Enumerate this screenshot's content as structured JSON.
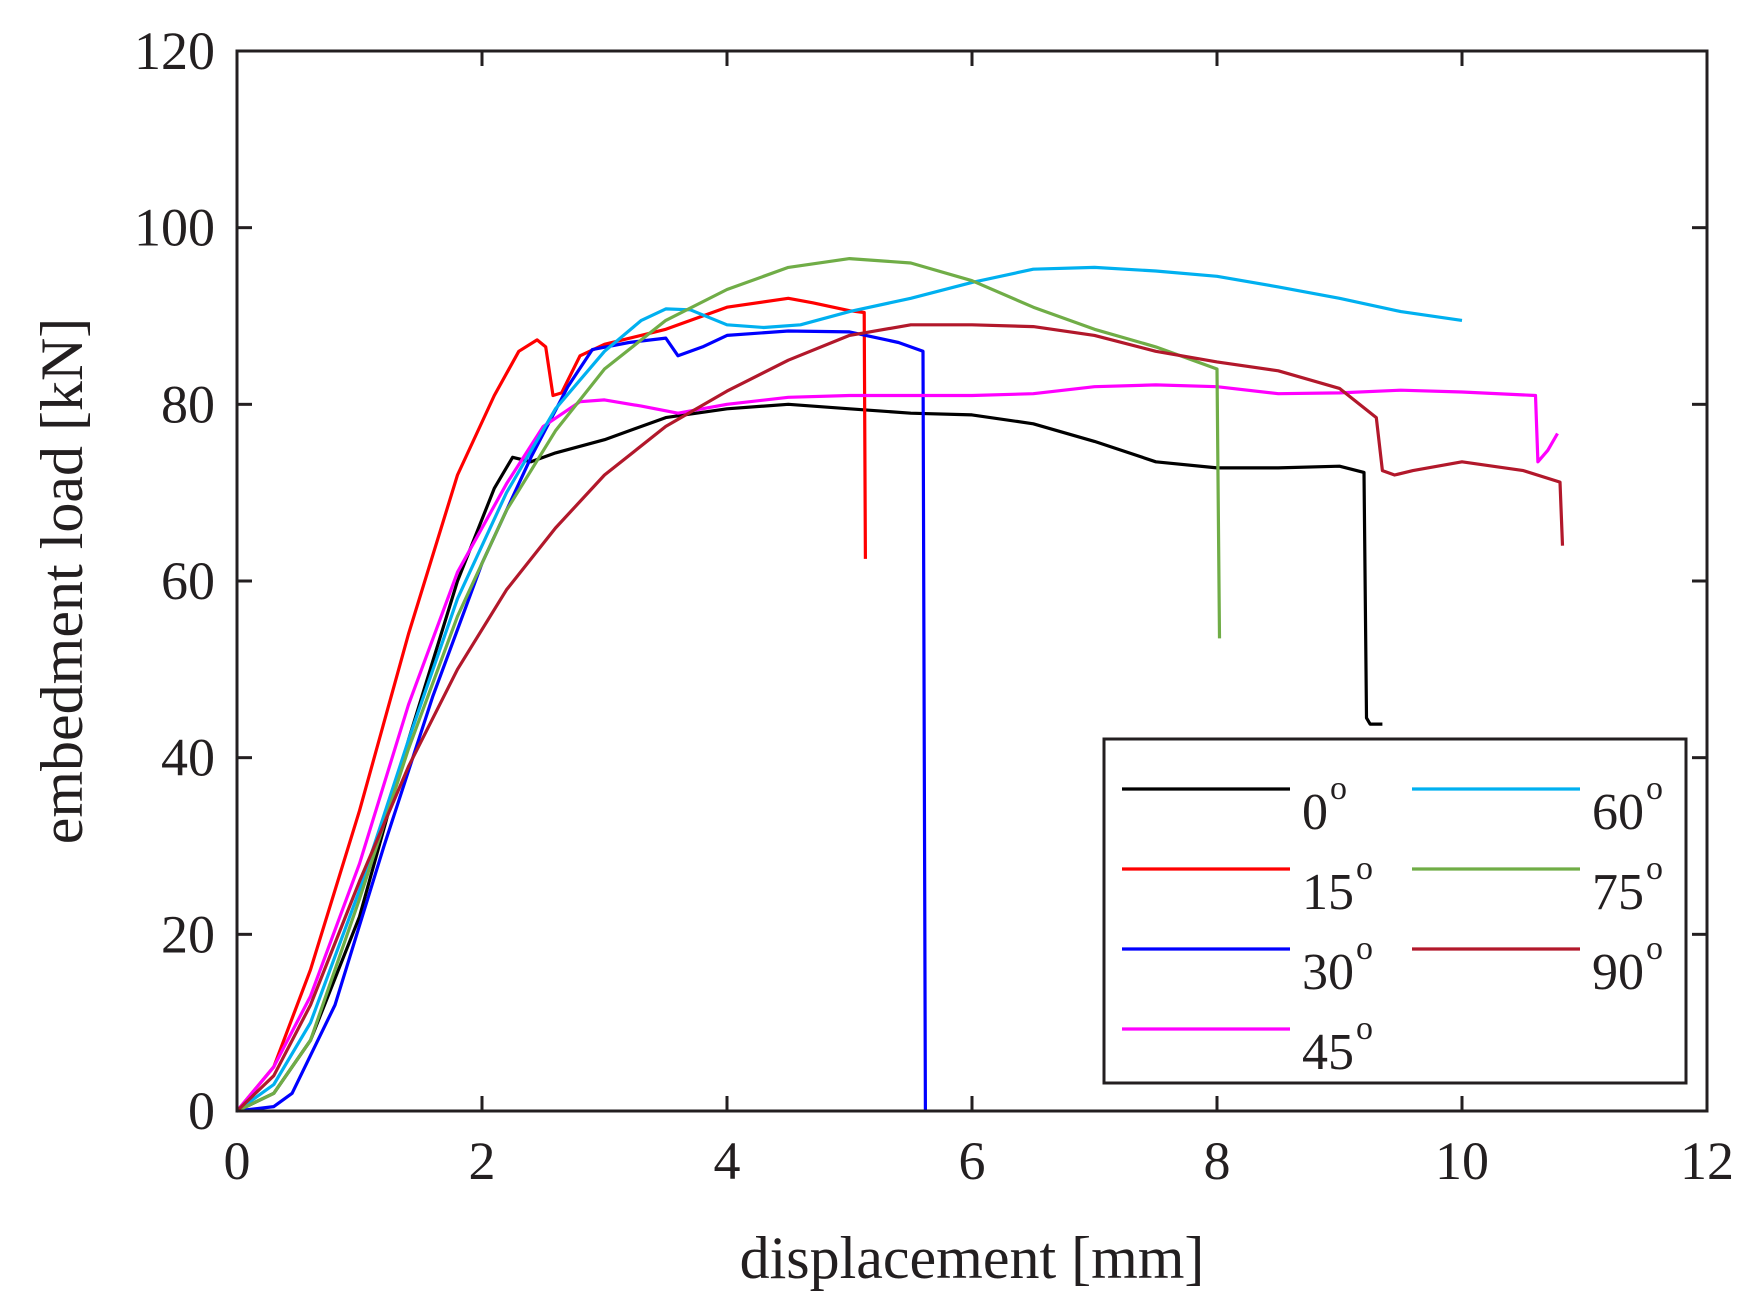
{
  "chart_data": {
    "type": "line",
    "title": "",
    "xlabel": "displacement [mm]",
    "ylabel": "embedment load [kN]",
    "xlim": [
      0,
      12
    ],
    "ylim": [
      0,
      120
    ],
    "xticks": [
      "0",
      "2",
      "4",
      "6",
      "8",
      "10",
      "12"
    ],
    "yticks": [
      "0",
      "20",
      "40",
      "60",
      "80",
      "100",
      "120"
    ],
    "legend_position": "bottom-right",
    "legend_columns": 2,
    "grid": false,
    "series": [
      {
        "name": "0",
        "unit_sup": "o",
        "color": "#000000",
        "points": [
          [
            0,
            0
          ],
          [
            0.3,
            2
          ],
          [
            0.6,
            8
          ],
          [
            1.0,
            22
          ],
          [
            1.4,
            42
          ],
          [
            1.8,
            60
          ],
          [
            2.1,
            70.5
          ],
          [
            2.25,
            74
          ],
          [
            2.4,
            73.5
          ],
          [
            2.6,
            74.5
          ],
          [
            3.0,
            76
          ],
          [
            3.5,
            78.5
          ],
          [
            4.0,
            79.5
          ],
          [
            4.5,
            80
          ],
          [
            5.0,
            79.5
          ],
          [
            5.5,
            79
          ],
          [
            6.0,
            78.8
          ],
          [
            6.5,
            77.8
          ],
          [
            7.0,
            75.8
          ],
          [
            7.5,
            73.5
          ],
          [
            8.0,
            72.8
          ],
          [
            8.5,
            72.8
          ],
          [
            9.0,
            73
          ],
          [
            9.2,
            72.3
          ],
          [
            9.22,
            44.5
          ],
          [
            9.25,
            43.8
          ],
          [
            9.35,
            43.8
          ]
        ]
      },
      {
        "name": "15",
        "unit_sup": "o",
        "color": "#ff0000",
        "points": [
          [
            0,
            0
          ],
          [
            0.3,
            5
          ],
          [
            0.6,
            16
          ],
          [
            1.0,
            34
          ],
          [
            1.4,
            54
          ],
          [
            1.8,
            72
          ],
          [
            2.1,
            81
          ],
          [
            2.3,
            86
          ],
          [
            2.45,
            87.3
          ],
          [
            2.52,
            86.5
          ],
          [
            2.58,
            81
          ],
          [
            2.65,
            81.3
          ],
          [
            2.8,
            85.5
          ],
          [
            3.0,
            86.8
          ],
          [
            3.5,
            88.5
          ],
          [
            4.0,
            91
          ],
          [
            4.5,
            92
          ],
          [
            4.7,
            91.5
          ],
          [
            5.0,
            90.6
          ],
          [
            5.12,
            90.4
          ],
          [
            5.13,
            62.5
          ]
        ]
      },
      {
        "name": "30",
        "unit_sup": "o",
        "color": "#0000ff",
        "points": [
          [
            0,
            0
          ],
          [
            0.3,
            0.5
          ],
          [
            0.45,
            2
          ],
          [
            0.8,
            12
          ],
          [
            1.2,
            30
          ],
          [
            1.6,
            47
          ],
          [
            2.0,
            62
          ],
          [
            2.4,
            74
          ],
          [
            2.7,
            82
          ],
          [
            2.9,
            86.2
          ],
          [
            3.2,
            87
          ],
          [
            3.5,
            87.5
          ],
          [
            3.6,
            85.5
          ],
          [
            3.8,
            86.5
          ],
          [
            4.0,
            87.8
          ],
          [
            4.5,
            88.3
          ],
          [
            5.0,
            88.2
          ],
          [
            5.4,
            87
          ],
          [
            5.6,
            86
          ],
          [
            5.62,
            0
          ]
        ]
      },
      {
        "name": "45",
        "unit_sup": "o",
        "color": "#ff00ff",
        "points": [
          [
            0,
            0
          ],
          [
            0.3,
            5
          ],
          [
            0.6,
            13
          ],
          [
            1.0,
            28
          ],
          [
            1.4,
            46
          ],
          [
            1.8,
            61
          ],
          [
            2.2,
            71
          ],
          [
            2.5,
            77.5
          ],
          [
            2.8,
            80.3
          ],
          [
            3.0,
            80.5
          ],
          [
            3.3,
            79.8
          ],
          [
            3.6,
            79
          ],
          [
            4.0,
            80
          ],
          [
            4.5,
            80.8
          ],
          [
            5.0,
            81
          ],
          [
            5.5,
            81
          ],
          [
            6.0,
            81
          ],
          [
            6.5,
            81.2
          ],
          [
            7.0,
            82
          ],
          [
            7.5,
            82.2
          ],
          [
            8.0,
            82
          ],
          [
            8.5,
            81.2
          ],
          [
            9.0,
            81.3
          ],
          [
            9.5,
            81.6
          ],
          [
            10.0,
            81.4
          ],
          [
            10.6,
            81
          ],
          [
            10.62,
            73.5
          ],
          [
            10.7,
            74.8
          ],
          [
            10.78,
            76.7
          ]
        ]
      },
      {
        "name": "60",
        "unit_sup": "o",
        "color": "#00b0f0",
        "points": [
          [
            0,
            0
          ],
          [
            0.3,
            3
          ],
          [
            0.6,
            10
          ],
          [
            1.0,
            25
          ],
          [
            1.4,
            42
          ],
          [
            1.8,
            58
          ],
          [
            2.2,
            70
          ],
          [
            2.6,
            79.5
          ],
          [
            3.0,
            86
          ],
          [
            3.3,
            89.5
          ],
          [
            3.5,
            90.8
          ],
          [
            3.7,
            90.7
          ],
          [
            4.0,
            89
          ],
          [
            4.3,
            88.7
          ],
          [
            4.6,
            89
          ],
          [
            5.0,
            90.5
          ],
          [
            5.5,
            92
          ],
          [
            6.0,
            93.8
          ],
          [
            6.5,
            95.3
          ],
          [
            7.0,
            95.5
          ],
          [
            7.5,
            95.1
          ],
          [
            8.0,
            94.5
          ],
          [
            8.5,
            93.3
          ],
          [
            9.0,
            92
          ],
          [
            9.5,
            90.5
          ],
          [
            10.0,
            89.5
          ]
        ]
      },
      {
        "name": "75",
        "unit_sup": "o",
        "color": "#70ad47",
        "points": [
          [
            0,
            0
          ],
          [
            0.3,
            2
          ],
          [
            0.6,
            8
          ],
          [
            1.0,
            24
          ],
          [
            1.4,
            41
          ],
          [
            1.8,
            56
          ],
          [
            2.2,
            68
          ],
          [
            2.6,
            77
          ],
          [
            3.0,
            84
          ],
          [
            3.5,
            89.5
          ],
          [
            4.0,
            93
          ],
          [
            4.5,
            95.5
          ],
          [
            5.0,
            96.5
          ],
          [
            5.5,
            96
          ],
          [
            6.0,
            94
          ],
          [
            6.5,
            91
          ],
          [
            7.0,
            88.5
          ],
          [
            7.5,
            86.5
          ],
          [
            8.0,
            84
          ],
          [
            8.02,
            53.5
          ]
        ]
      },
      {
        "name": "90",
        "unit_sup": "o",
        "color": "#b2182b",
        "points": [
          [
            0,
            0
          ],
          [
            0.3,
            4
          ],
          [
            0.6,
            12
          ],
          [
            1.0,
            26
          ],
          [
            1.4,
            39
          ],
          [
            1.8,
            50
          ],
          [
            2.2,
            59
          ],
          [
            2.6,
            66
          ],
          [
            3.0,
            72
          ],
          [
            3.5,
            77.5
          ],
          [
            4.0,
            81.5
          ],
          [
            4.5,
            85
          ],
          [
            5.0,
            87.8
          ],
          [
            5.5,
            89
          ],
          [
            6.0,
            89
          ],
          [
            6.5,
            88.8
          ],
          [
            7.0,
            87.8
          ],
          [
            7.5,
            86
          ],
          [
            8.0,
            84.8
          ],
          [
            8.5,
            83.8
          ],
          [
            9.0,
            81.8
          ],
          [
            9.3,
            78.5
          ],
          [
            9.35,
            72.5
          ],
          [
            9.45,
            72
          ],
          [
            9.6,
            72.5
          ],
          [
            10.0,
            73.5
          ],
          [
            10.5,
            72.5
          ],
          [
            10.8,
            71.2
          ],
          [
            10.82,
            64
          ]
        ]
      }
    ]
  }
}
